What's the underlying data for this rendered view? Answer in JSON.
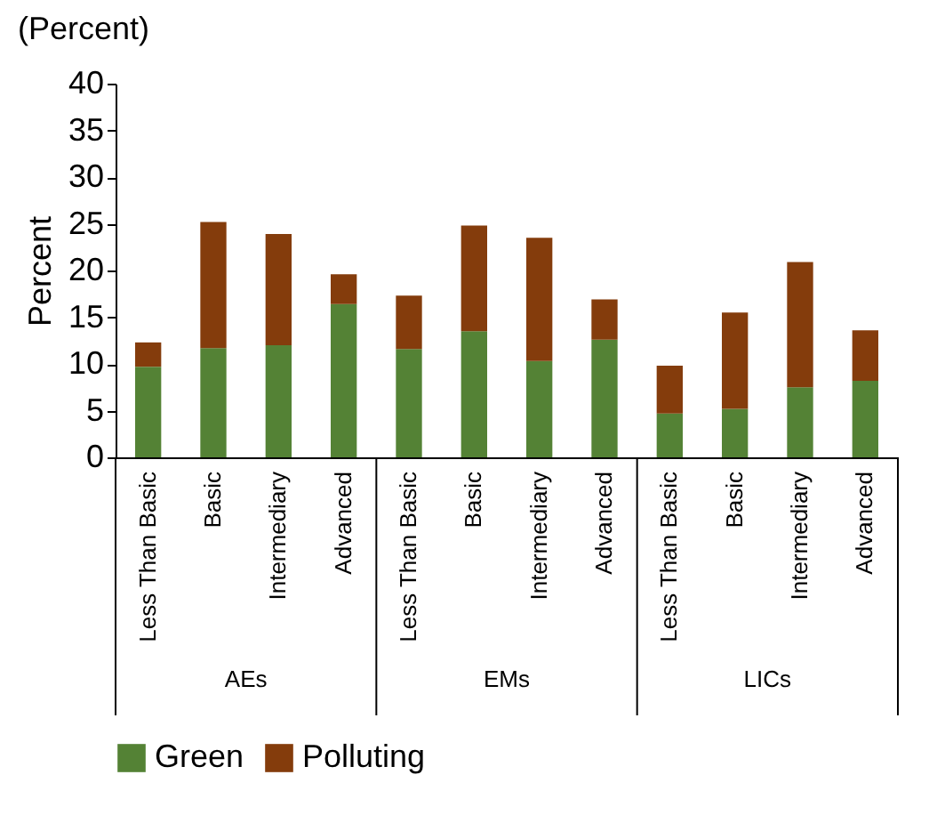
{
  "chart_data": {
    "type": "bar",
    "stacked": true,
    "title": "(Percent)",
    "ylabel": "Percent",
    "categories": [
      "Less Than Basic",
      "Basic",
      "Intermediary",
      "Advanced",
      "Less Than Basic",
      "Basic",
      "Intermediary",
      "Advanced",
      "Less Than Basic",
      "Basic",
      "Intermediary",
      "Advanced"
    ],
    "series": [
      {
        "name": "Green",
        "color": "#548235",
        "values": [
          9.7,
          11.7,
          12.0,
          16.4,
          11.6,
          13.5,
          10.3,
          12.6,
          4.7,
          5.2,
          7.5,
          8.2
        ]
      },
      {
        "name": "Polluting",
        "color": "#843c0c",
        "values": [
          2.6,
          13.5,
          11.9,
          3.2,
          5.7,
          11.3,
          13.2,
          4.3,
          5.1,
          10.3,
          13.4,
          5.4
        ]
      }
    ],
    "annotations": [
      "AEs",
      "EMs",
      "LICs"
    ],
    "ylim": [
      0,
      40
    ],
    "yticks": [
      0,
      5,
      10,
      15,
      20,
      25,
      30,
      35,
      40
    ],
    "grid": false,
    "legend": "bottom"
  }
}
